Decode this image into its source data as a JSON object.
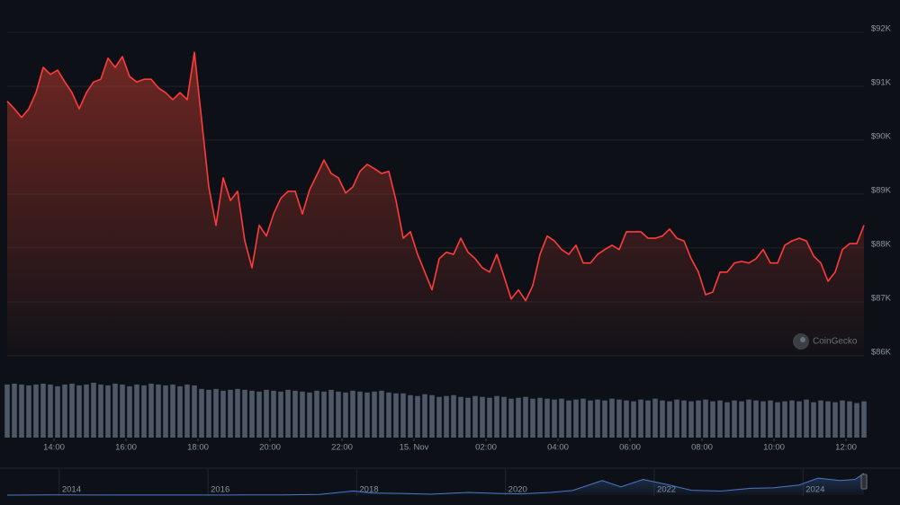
{
  "chart_data": {
    "type": "area",
    "color": "#ff3b3b",
    "annotation": "CoinGecko",
    "xlim": [
      12.7,
      36.5
    ],
    "xticks": [
      {
        "value": 14,
        "label": "14:00"
      },
      {
        "value": 16,
        "label": "16:00"
      },
      {
        "value": 18,
        "label": "18:00"
      },
      {
        "value": 20,
        "label": "20:00"
      },
      {
        "value": 22,
        "label": "22:00"
      },
      {
        "value": 24,
        "label": "15. Nov"
      },
      {
        "value": 26,
        "label": "02:00"
      },
      {
        "value": 28,
        "label": "04:00"
      },
      {
        "value": 30,
        "label": "06:00"
      },
      {
        "value": 32,
        "label": "08:00"
      },
      {
        "value": 34,
        "label": "10:00"
      },
      {
        "value": 36,
        "label": "12:00"
      }
    ],
    "ylim": [
      85930,
      92600
    ],
    "yticks": [
      {
        "value": 86000,
        "label": "$86K"
      },
      {
        "value": 87000,
        "label": "$87K"
      },
      {
        "value": 88000,
        "label": "$88K"
      },
      {
        "value": 89000,
        "label": "$89K"
      },
      {
        "value": 90000,
        "label": "$90K"
      },
      {
        "value": 91000,
        "label": "$91K"
      },
      {
        "value": 92000,
        "label": "$92K"
      }
    ],
    "grid": true,
    "x": [
      12.7,
      12.9,
      13.1,
      13.3,
      13.5,
      13.7,
      13.9,
      14.1,
      14.3,
      14.5,
      14.7,
      14.9,
      15.1,
      15.3,
      15.5,
      15.7,
      15.9,
      16.1,
      16.3,
      16.5,
      16.7,
      16.9,
      17.1,
      17.3,
      17.5,
      17.7,
      17.9,
      18.1,
      18.3,
      18.5,
      18.7,
      18.9,
      19.1,
      19.3,
      19.5,
      19.7,
      19.9,
      20.1,
      20.3,
      20.5,
      20.7,
      20.9,
      21.1,
      21.3,
      21.5,
      21.7,
      21.9,
      22.1,
      22.3,
      22.5,
      22.7,
      22.9,
      23.1,
      23.3,
      23.5,
      23.7,
      23.9,
      24.1,
      24.3,
      24.5,
      24.7,
      24.9,
      25.1,
      25.3,
      25.5,
      25.7,
      25.9,
      26.1,
      26.3,
      26.5,
      26.7,
      26.9,
      27.1,
      27.3,
      27.5,
      27.7,
      27.9,
      28.1,
      28.3,
      28.5,
      28.7,
      28.9,
      29.1,
      29.3,
      29.5,
      29.7,
      29.9,
      30.1,
      30.3,
      30.5,
      30.7,
      30.9,
      31.1,
      31.3,
      31.5,
      31.7,
      31.9,
      32.1,
      32.3,
      32.5,
      32.7,
      32.9,
      33.1,
      33.3,
      33.5,
      33.7,
      33.9,
      34.1,
      34.3,
      34.5,
      34.7,
      34.9,
      35.1,
      35.3,
      35.5,
      35.7,
      35.9,
      36.1,
      36.3,
      36.5
    ],
    "values": [
      90720,
      90580,
      90420,
      90580,
      90880,
      91350,
      91220,
      91300,
      91080,
      90880,
      90580,
      90880,
      91080,
      91130,
      91520,
      91350,
      91550,
      91180,
      91080,
      91130,
      91130,
      90970,
      90880,
      90750,
      90880,
      90750,
      91630,
      90380,
      89130,
      88420,
      89300,
      88880,
      89050,
      88130,
      87630,
      88420,
      88220,
      88630,
      88920,
      89050,
      89050,
      88630,
      89080,
      89350,
      89630,
      89380,
      89300,
      89020,
      89130,
      89420,
      89550,
      89470,
      89380,
      89420,
      88880,
      88180,
      88300,
      87880,
      87550,
      87220,
      87800,
      87920,
      87880,
      88180,
      87920,
      87800,
      87630,
      87550,
      87880,
      87470,
      87050,
      87220,
      87020,
      87300,
      87880,
      88220,
      88130,
      87970,
      87880,
      88050,
      87720,
      87720,
      87880,
      87970,
      88050,
      87970,
      88300,
      88300,
      88300,
      88180,
      88180,
      88220,
      88350,
      88180,
      88130,
      87800,
      87550,
      87130,
      87180,
      87550,
      87550,
      87720,
      87750,
      87720,
      87800,
      87970,
      87720,
      87720,
      88050,
      88130,
      88180,
      88130,
      87850,
      87720,
      87380,
      87550,
      87970,
      88080,
      88080,
      88420
    ],
    "volume": {
      "color": "#5b6675",
      "vlim": [
        0,
        65
      ],
      "values": [
        60,
        61,
        60,
        59,
        60,
        61,
        60,
        58,
        60,
        61,
        59,
        60,
        62,
        60,
        59,
        61,
        60,
        58,
        60,
        59,
        61,
        60,
        59,
        60,
        58,
        60,
        59,
        55,
        54,
        55,
        53,
        54,
        55,
        54,
        53,
        52,
        54,
        53,
        52,
        54,
        53,
        52,
        51,
        53,
        52,
        54,
        52,
        51,
        53,
        52,
        51,
        52,
        53,
        51,
        50,
        50,
        48,
        47,
        49,
        48,
        46,
        47,
        48,
        46,
        45,
        47,
        46,
        45,
        47,
        46,
        44,
        45,
        46,
        44,
        45,
        44,
        43,
        44,
        42,
        43,
        44,
        42,
        43,
        42,
        44,
        43,
        42,
        41,
        43,
        42,
        44,
        42,
        41,
        43,
        42,
        41,
        42,
        43,
        41,
        42,
        40,
        42,
        41,
        43,
        42,
        41,
        42,
        40,
        41,
        42,
        41,
        43,
        40,
        42,
        41,
        40,
        42,
        41,
        39,
        41
      ]
    },
    "navigator": {
      "color": "#4a78c8",
      "xlim": [
        2013.3,
        2024.82
      ],
      "xticks": [
        2014,
        2016,
        2018,
        2020,
        2022,
        2024
      ],
      "ylim": [
        0,
        100000
      ],
      "x": [
        2013.3,
        2013.9,
        2014.5,
        2015.0,
        2015.8,
        2016.5,
        2017.0,
        2017.5,
        2017.95,
        2018.2,
        2018.6,
        2019.0,
        2019.5,
        2019.9,
        2020.2,
        2020.6,
        2020.9,
        2021.3,
        2021.55,
        2021.85,
        2022.2,
        2022.5,
        2022.9,
        2023.3,
        2023.6,
        2023.95,
        2024.2,
        2024.5,
        2024.7,
        2024.82
      ],
      "values": [
        100,
        800,
        500,
        250,
        400,
        650,
        1000,
        2700,
        17000,
        9000,
        7000,
        3600,
        11000,
        7200,
        5000,
        11000,
        19000,
        60000,
        34000,
        65000,
        42000,
        20000,
        16500,
        28000,
        30000,
        42000,
        70000,
        60000,
        65000,
        90000
      ]
    }
  }
}
